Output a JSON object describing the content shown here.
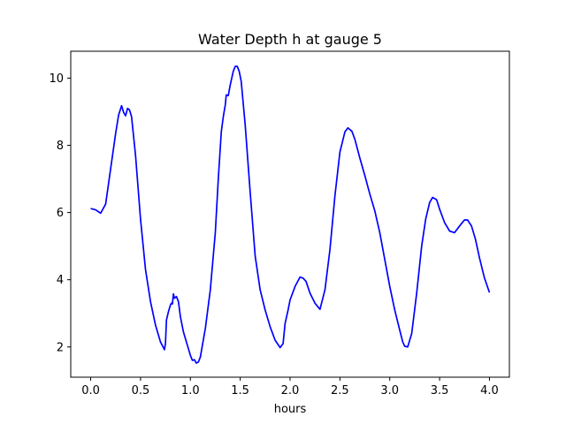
{
  "chart_data": {
    "type": "line",
    "title": "Water Depth h at gauge 5",
    "xlabel": "hours",
    "ylabel": "",
    "xlim": [
      -0.2,
      4.2
    ],
    "ylim": [
      1.1,
      10.8
    ],
    "xticks": [
      0.0,
      0.5,
      1.0,
      1.5,
      2.0,
      2.5,
      3.0,
      3.5,
      4.0
    ],
    "xtick_labels": [
      "0.0",
      "0.5",
      "1.0",
      "1.5",
      "2.0",
      "2.5",
      "3.0",
      "3.5",
      "4.0"
    ],
    "yticks": [
      2,
      4,
      6,
      8,
      10
    ],
    "ytick_labels": [
      "2",
      "4",
      "6",
      "8",
      "10"
    ],
    "grid": false,
    "series": [
      {
        "color": "#0000ff",
        "x": [
          0.0,
          0.05,
          0.1,
          0.15,
          0.2,
          0.25,
          0.28,
          0.31,
          0.33,
          0.35,
          0.37,
          0.39,
          0.41,
          0.45,
          0.5,
          0.55,
          0.6,
          0.65,
          0.7,
          0.74,
          0.75,
          0.76,
          0.78,
          0.8,
          0.81,
          0.82,
          0.83,
          0.84,
          0.86,
          0.88,
          0.9,
          0.93,
          0.96,
          1.0,
          1.02,
          1.04,
          1.06,
          1.08,
          1.1,
          1.15,
          1.2,
          1.25,
          1.28,
          1.31,
          1.33,
          1.35,
          1.36,
          1.38,
          1.4,
          1.43,
          1.45,
          1.47,
          1.49,
          1.51,
          1.55,
          1.6,
          1.65,
          1.7,
          1.75,
          1.8,
          1.85,
          1.9,
          1.93,
          1.95,
          1.98,
          2.0,
          2.05,
          2.1,
          2.13,
          2.16,
          2.2,
          2.25,
          2.3,
          2.35,
          2.4,
          2.45,
          2.5,
          2.55,
          2.58,
          2.62,
          2.65,
          2.7,
          2.75,
          2.8,
          2.85,
          2.9,
          2.95,
          3.0,
          3.05,
          3.1,
          3.13,
          3.15,
          3.18,
          3.22,
          3.27,
          3.32,
          3.36,
          3.4,
          3.43,
          3.47,
          3.5,
          3.55,
          3.6,
          3.65,
          3.7,
          3.75,
          3.78,
          3.82,
          3.86,
          3.9,
          3.95,
          4.0
        ],
        "y": [
          6.12,
          6.08,
          5.98,
          6.25,
          7.3,
          8.35,
          8.9,
          9.18,
          8.98,
          8.88,
          9.1,
          9.05,
          8.85,
          7.7,
          5.8,
          4.3,
          3.35,
          2.65,
          2.15,
          1.92,
          2.1,
          2.8,
          3.05,
          3.25,
          3.3,
          3.28,
          3.58,
          3.45,
          3.5,
          3.35,
          2.9,
          2.45,
          2.15,
          1.75,
          1.6,
          1.62,
          1.52,
          1.55,
          1.7,
          2.55,
          3.7,
          5.4,
          7.0,
          8.4,
          8.85,
          9.2,
          9.5,
          9.48,
          9.8,
          10.2,
          10.35,
          10.35,
          10.2,
          9.9,
          8.6,
          6.6,
          4.7,
          3.7,
          3.1,
          2.6,
          2.2,
          1.98,
          2.1,
          2.7,
          3.1,
          3.4,
          3.8,
          4.08,
          4.05,
          3.95,
          3.6,
          3.3,
          3.12,
          3.7,
          4.9,
          6.5,
          7.8,
          8.4,
          8.52,
          8.42,
          8.18,
          7.62,
          7.1,
          6.55,
          6.05,
          5.4,
          4.6,
          3.8,
          3.1,
          2.5,
          2.15,
          2.02,
          2.0,
          2.4,
          3.6,
          5.0,
          5.8,
          6.3,
          6.45,
          6.38,
          6.1,
          5.7,
          5.45,
          5.4,
          5.6,
          5.78,
          5.78,
          5.6,
          5.2,
          4.65,
          4.05,
          3.62
        ]
      }
    ]
  }
}
